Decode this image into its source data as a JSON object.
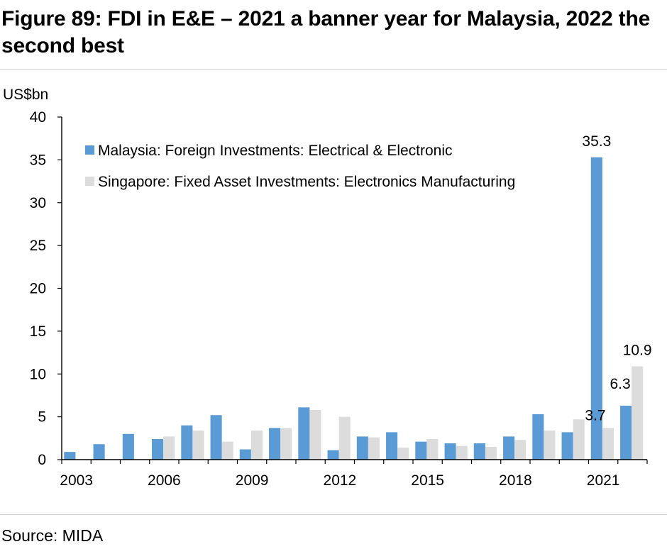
{
  "figure": {
    "title": "Figure 89: FDI in E&E – 2021 a banner year for Malaysia, 2022 the second best",
    "source": "Source: MIDA"
  },
  "colors": {
    "malaysia": "#5b9bd5",
    "singapore": "#dcdcdc",
    "axis": "#000000"
  },
  "chart_data": {
    "type": "bar",
    "ylabel": "US$bn",
    "ylim": [
      0,
      40
    ],
    "yticks": [
      0,
      5,
      10,
      15,
      20,
      25,
      30,
      35,
      40
    ],
    "categories": [
      "2003",
      "2004",
      "2005",
      "2006",
      "2007",
      "2008",
      "2009",
      "2010",
      "2011",
      "2012",
      "2013",
      "2014",
      "2015",
      "2016",
      "2017",
      "2018",
      "2019",
      "2020",
      "2021",
      "2022"
    ],
    "xtick_labels": [
      "2003",
      "2006",
      "2009",
      "2012",
      "2015",
      "2018",
      "2021"
    ],
    "legend_position": "top-left",
    "series": [
      {
        "name": "Malaysia: Foreign Investments: Electrical & Electronic",
        "values": [
          0.9,
          1.8,
          3.0,
          2.4,
          4.0,
          5.2,
          1.2,
          3.7,
          6.1,
          1.1,
          2.7,
          3.2,
          2.1,
          1.9,
          1.9,
          2.7,
          5.3,
          3.2,
          35.3,
          6.3
        ]
      },
      {
        "name": "Singapore: Fixed Asset Investments: Electronics Manufacturing",
        "values": [
          null,
          null,
          null,
          2.7,
          3.4,
          2.1,
          3.4,
          3.7,
          5.8,
          5.0,
          2.6,
          1.4,
          2.4,
          1.6,
          1.5,
          2.3,
          3.4,
          4.7,
          3.7,
          10.9
        ]
      }
    ],
    "annotations": [
      {
        "series": 0,
        "category": "2021",
        "text": "35.3"
      },
      {
        "series": 0,
        "category": "2022",
        "text": "6.3"
      },
      {
        "series": 1,
        "category": "2021",
        "text": "3.7"
      },
      {
        "series": 1,
        "category": "2022",
        "text": "10.9"
      }
    ]
  }
}
